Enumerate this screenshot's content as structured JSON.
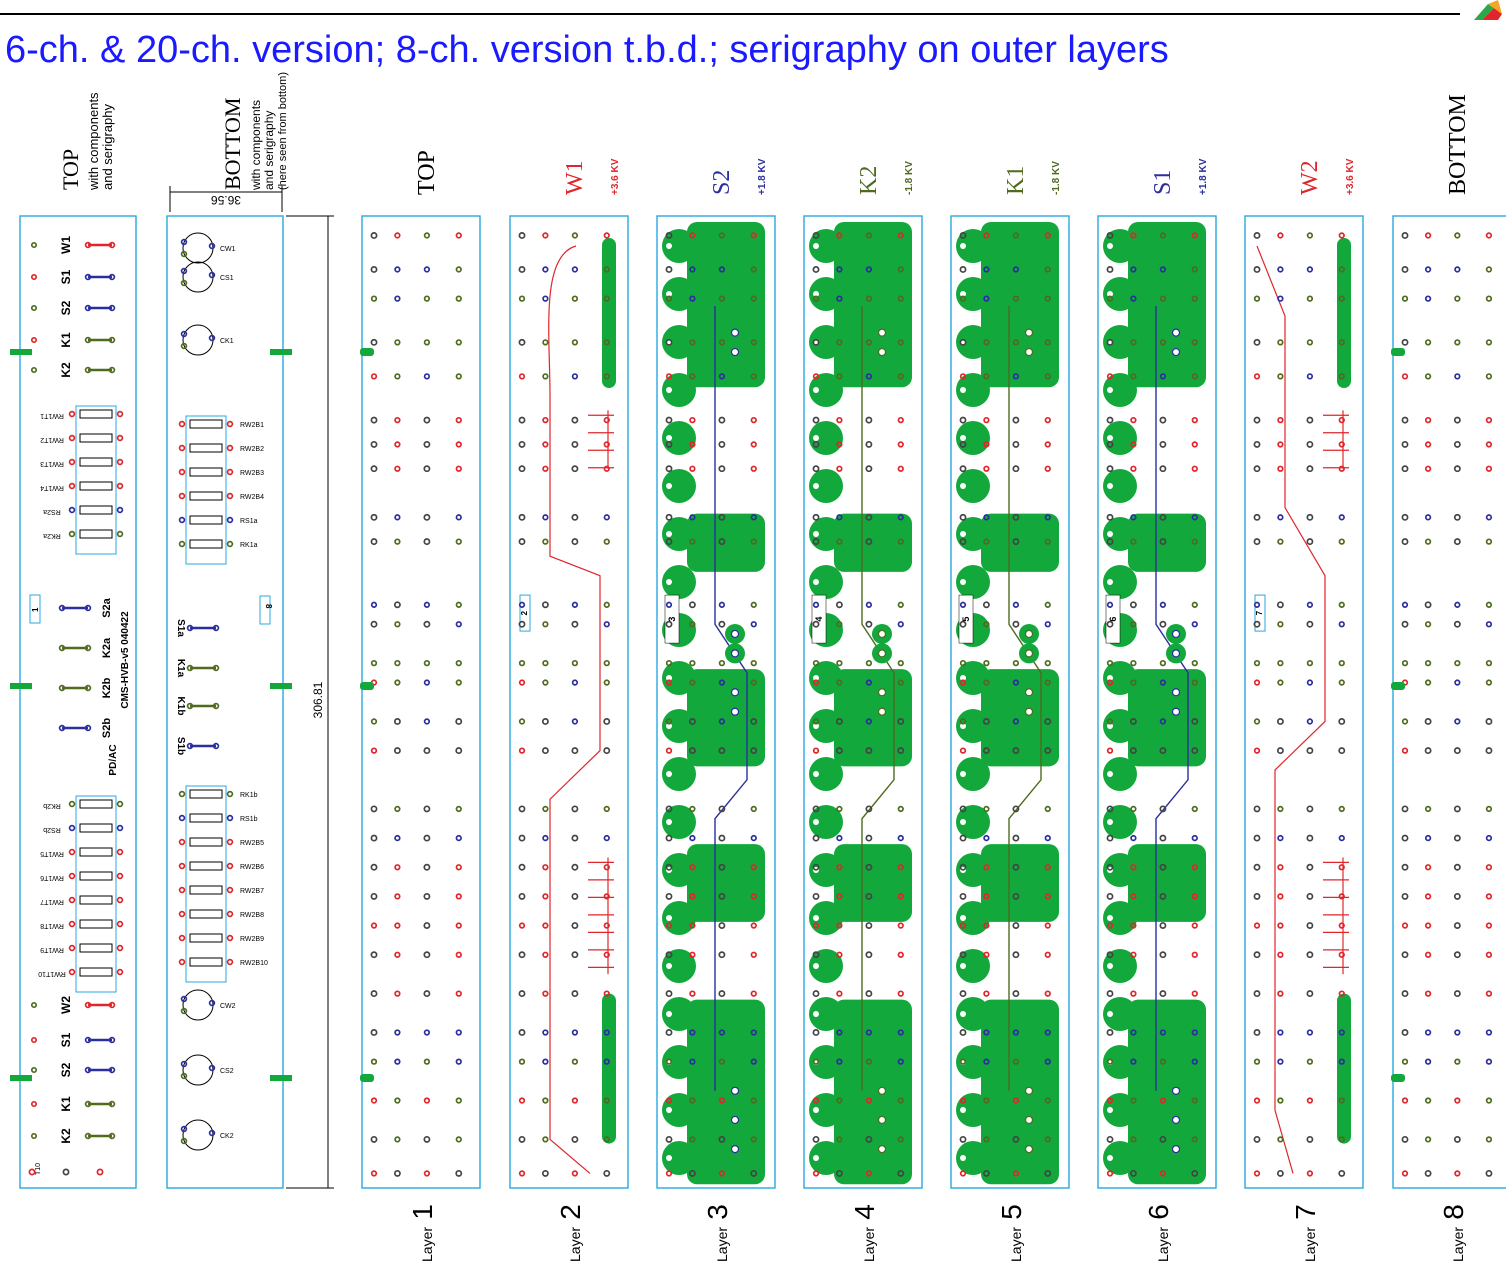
{
  "title": "6-ch. & 20-ch. version; 8-ch. version t.b.d.; serigraphy on outer layers",
  "colors": {
    "title": "#1a1aff",
    "outline": "#29a8e0",
    "copper": "#12a83c",
    "w_net": "#e0262b",
    "s_net": "#2b2f9e",
    "k_net": "#4f6b1f"
  },
  "panels": {
    "top": {
      "label": "TOP",
      "sub1": "with components",
      "sub2": "and serigraphy",
      "nets": [
        "W1",
        "S1",
        "S2",
        "K1",
        "K2",
        "S2a",
        "K2a",
        "K2b",
        "S2b",
        "W2",
        "S1",
        "S2",
        "K1",
        "K2"
      ],
      "info1": "CMS-HVB-v5 040422",
      "info2": "PD/AC",
      "resistors_a": [
        "RW1T1",
        "RW1T2",
        "RW1T3",
        "RW1T4",
        "RS2a",
        "RK2a"
      ],
      "resistors_b": [
        "RK2b",
        "RS2b",
        "RW1T5",
        "RW1T6",
        "RW1T7",
        "RW1T8",
        "RW1T9",
        "RW1T10"
      ]
    },
    "bottom": {
      "label": "BOTTOM",
      "sub1": "with components",
      "sub2": "and serigraphy",
      "sub3": "(here seen from bottom)",
      "caps_top": [
        "CW1",
        "CS1",
        "CK1"
      ],
      "caps_bottom": [
        "CW2",
        "CS2",
        "CK2"
      ],
      "resistors_a": [
        "RW2B1",
        "RW2B2",
        "RW2B3",
        "RW2B4",
        "RS1a",
        "RK1a"
      ],
      "resistors_b": [
        "RK1b",
        "RS1b",
        "RW2B5",
        "RW2B6",
        "RW2B7",
        "RW2B8",
        "RW2B9",
        "RW2B10"
      ],
      "nets": [
        "S1a",
        "K1a",
        "K1b",
        "S1b"
      ]
    },
    "dim_width": "36.56",
    "dim_height": "306.81",
    "layers": [
      {
        "num": "1",
        "label": "Layer",
        "title": "TOP",
        "voltage": ""
      },
      {
        "num": "2",
        "label": "Layer",
        "title": "W1",
        "voltage": "+3.6 KV"
      },
      {
        "num": "3",
        "label": "Layer",
        "title": "S2",
        "voltage": "+1.8 KV"
      },
      {
        "num": "4",
        "label": "Layer",
        "title": "K2",
        "voltage": "-1.8 KV"
      },
      {
        "num": "5",
        "label": "Layer",
        "title": "K1",
        "voltage": "-1.8 KV"
      },
      {
        "num": "6",
        "label": "Layer",
        "title": "S1",
        "voltage": "+1.8 KV"
      },
      {
        "num": "7",
        "label": "Layer",
        "title": "W2",
        "voltage": "+3.6 KV"
      },
      {
        "num": "8",
        "label": "Layer",
        "title": "BOTTOM",
        "voltage": ""
      }
    ]
  }
}
